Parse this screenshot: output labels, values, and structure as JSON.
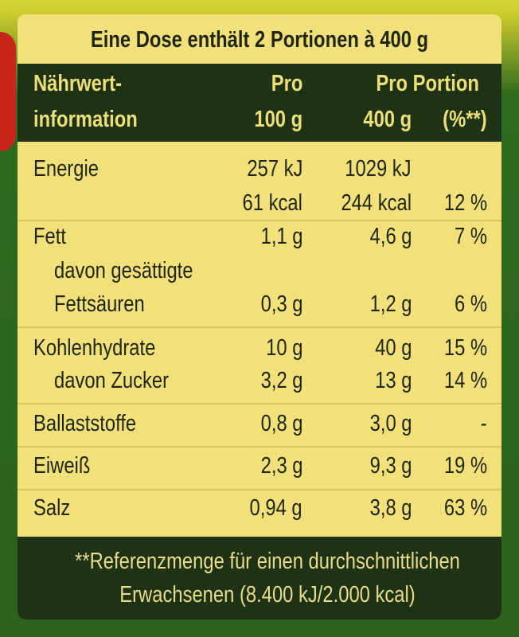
{
  "header": {
    "title": "Eine Dose enthält 2 Portionen à 400 g"
  },
  "table": {
    "columns": {
      "nutrient": [
        "Nährwert-",
        "information"
      ],
      "per100": [
        "Pro",
        "100 g"
      ],
      "portion": "Pro Portion",
      "portion_amount": "400 g",
      "percent": "(%**)"
    },
    "rows": [
      {
        "label": "Energie",
        "per100": "257 kJ",
        "portion": "1029 kJ"
      },
      {
        "per100": "61 kcal",
        "portion": "244 kcal",
        "percent": "12 %"
      },
      {
        "label": "Fett",
        "per100": "1,1 g",
        "portion": "4,6 g",
        "percent": "7 %"
      },
      {
        "label": "davon gesättigte"
      },
      {
        "label": "Fettsäuren",
        "per100": "0,3 g",
        "portion": "1,2 g",
        "percent": "6 %"
      },
      {
        "label": "Kohlenhydrate",
        "per100": "10 g",
        "portion": "40 g",
        "percent": "15 %"
      },
      {
        "label": "davon Zucker",
        "per100": "3,2 g",
        "portion": "13 g",
        "percent": "14 %"
      },
      {
        "label": "Ballaststoffe",
        "per100": "0,8 g",
        "portion": "3,0 g",
        "percent": "-"
      },
      {
        "label": "Eiweiß",
        "per100": "2,3 g",
        "portion": "9,3 g",
        "percent": "19 %"
      },
      {
        "label": "Salz",
        "per100": "0,94 g",
        "portion": "3,8 g",
        "percent": "63 %"
      }
    ]
  },
  "footer": [
    "**Referenzmenge für einen durchschnittlichen",
    "Erwachsenen (8.400 kJ/2.000 kcal)"
  ]
}
